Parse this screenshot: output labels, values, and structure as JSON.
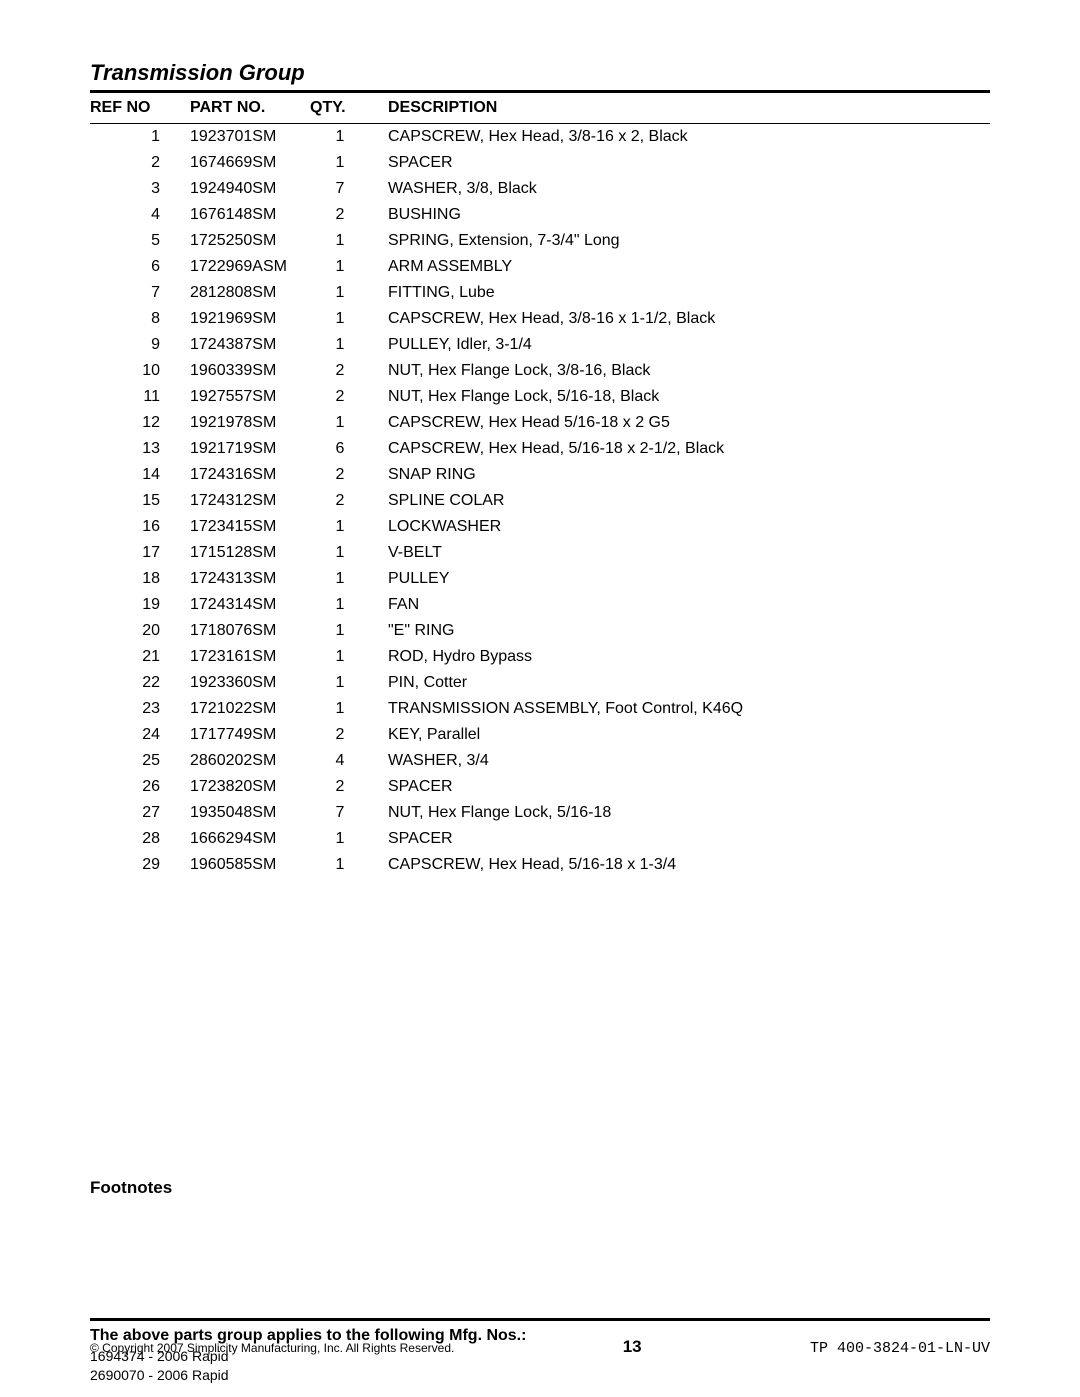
{
  "group_title": "Transmission Group",
  "table": {
    "columns": [
      "REF NO",
      "PART NO.",
      "QTY.",
      "DESCRIPTION"
    ],
    "rows": [
      {
        "ref": "1",
        "part": "1923701SM",
        "qty": "1",
        "desc": "CAPSCREW, Hex Head, 3/8-16 x 2, Black"
      },
      {
        "ref": "2",
        "part": "1674669SM",
        "qty": "1",
        "desc": "SPACER"
      },
      {
        "ref": "3",
        "part": "1924940SM",
        "qty": "7",
        "desc": "WASHER, 3/8, Black"
      },
      {
        "ref": "4",
        "part": "1676148SM",
        "qty": "2",
        "desc": "BUSHING"
      },
      {
        "ref": "5",
        "part": "1725250SM",
        "qty": "1",
        "desc": "SPRING, Extension, 7-3/4\" Long"
      },
      {
        "ref": "6",
        "part": "1722969ASM",
        "qty": "1",
        "desc": "ARM ASSEMBLY"
      },
      {
        "ref": "7",
        "part": "2812808SM",
        "qty": "1",
        "desc": "FITTING, Lube"
      },
      {
        "ref": "8",
        "part": "1921969SM",
        "qty": "1",
        "desc": "CAPSCREW, Hex Head, 3/8-16 x 1-1/2, Black"
      },
      {
        "ref": "9",
        "part": "1724387SM",
        "qty": "1",
        "desc": "PULLEY, Idler, 3-1/4"
      },
      {
        "ref": "10",
        "part": "1960339SM",
        "qty": "2",
        "desc": "NUT, Hex Flange Lock, 3/8-16, Black"
      },
      {
        "ref": "11",
        "part": "1927557SM",
        "qty": "2",
        "desc": "NUT, Hex Flange Lock, 5/16-18, Black"
      },
      {
        "ref": "12",
        "part": "1921978SM",
        "qty": "1",
        "desc": "CAPSCREW, Hex Head 5/16-18 x 2 G5"
      },
      {
        "ref": "13",
        "part": "1921719SM",
        "qty": "6",
        "desc": "CAPSCREW, Hex Head, 5/16-18 x 2-1/2, Black"
      },
      {
        "ref": "14",
        "part": "1724316SM",
        "qty": "2",
        "desc": "SNAP RING"
      },
      {
        "ref": "15",
        "part": "1724312SM",
        "qty": "2",
        "desc": "SPLINE COLAR"
      },
      {
        "ref": "16",
        "part": "1723415SM",
        "qty": "1",
        "desc": "LOCKWASHER"
      },
      {
        "ref": "17",
        "part": "1715128SM",
        "qty": "1",
        "desc": "V-BELT"
      },
      {
        "ref": "18",
        "part": "1724313SM",
        "qty": "1",
        "desc": "PULLEY"
      },
      {
        "ref": "19",
        "part": "1724314SM",
        "qty": "1",
        "desc": "FAN"
      },
      {
        "ref": "20",
        "part": "1718076SM",
        "qty": "1",
        "desc": "\"E\" RING"
      },
      {
        "ref": "21",
        "part": "1723161SM",
        "qty": "1",
        "desc": "ROD, Hydro Bypass"
      },
      {
        "ref": "22",
        "part": "1923360SM",
        "qty": "1",
        "desc": "PIN, Cotter"
      },
      {
        "ref": "23",
        "part": "1721022SM",
        "qty": "1",
        "desc": "TRANSMISSION ASSEMBLY, Foot Control, K46Q"
      },
      {
        "ref": "24",
        "part": "1717749SM",
        "qty": "2",
        "desc": "KEY, Parallel"
      },
      {
        "ref": "25",
        "part": "2860202SM",
        "qty": "4",
        "desc": "WASHER, 3/4"
      },
      {
        "ref": "26",
        "part": "1723820SM",
        "qty": "2",
        "desc": "SPACER"
      },
      {
        "ref": "27",
        "part": "1935048SM",
        "qty": "7",
        "desc": "NUT, Hex Flange Lock, 5/16-18"
      },
      {
        "ref": "28",
        "part": "1666294SM",
        "qty": "1",
        "desc": "SPACER"
      },
      {
        "ref": "29",
        "part": "1960585SM",
        "qty": "1",
        "desc": "CAPSCREW, Hex Head, 5/16-18 x 1-3/4"
      }
    ]
  },
  "footnotes_heading": "Footnotes",
  "applies_heading": "The above parts group applies to the following Mfg. Nos.:",
  "mfg_nos": [
    "1694374 - 2006 Rapid",
    "2690070 - 2006 Rapid"
  ],
  "footer": {
    "copyright": "© Copyright 2007 Simplicity Manufacturing, Inc. All Rights Reserved.",
    "page_number": "13",
    "doc_id": "TP 400-3824-01-LN-UV"
  }
}
